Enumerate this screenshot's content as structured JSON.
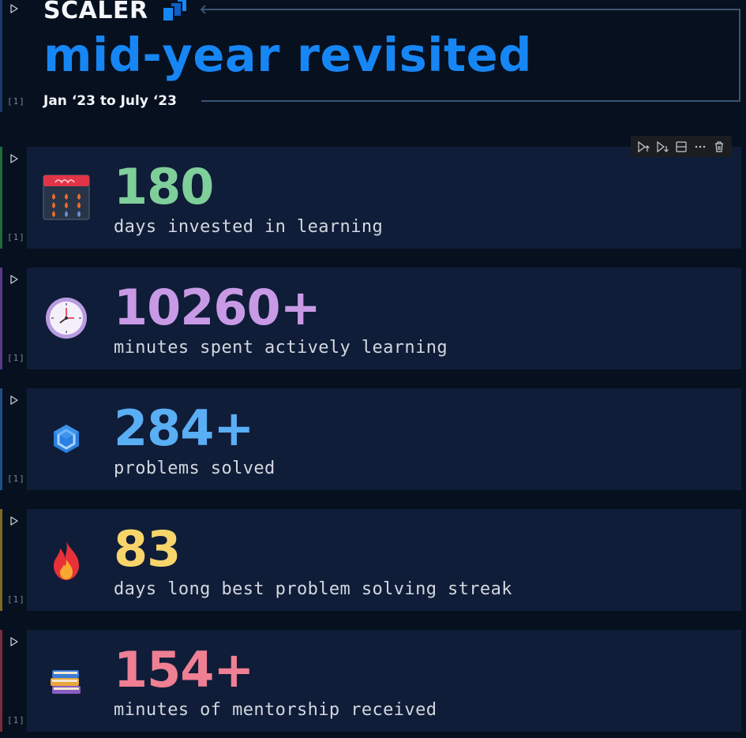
{
  "header": {
    "brand": "SCALER",
    "title": "mid-year revisited",
    "subtitle": "Jan ‘23 to July ‘23",
    "exec_count": "[1]"
  },
  "cells": [
    {
      "value": "180",
      "label": "days invested in learning",
      "color": "#7ecf9a",
      "icon": "calendar-icon",
      "exec_count": "[1]",
      "bar_color": "#1f6b3a"
    },
    {
      "value": "10260+",
      "label": "minutes spent actively learning",
      "color": "#c89ae6",
      "icon": "clock-icon",
      "exec_count": "[1]",
      "bar_color": "#5b3a8a"
    },
    {
      "value": "284+",
      "label": "problems solved",
      "color": "#5aaef4",
      "icon": "hexagon-icon",
      "exec_count": "[1]",
      "bar_color": "#1f4f86"
    },
    {
      "value": "83",
      "label": "days long best problem solving streak",
      "color": "#f7d56a",
      "icon": "fire-icon",
      "exec_count": "[1]",
      "bar_color": "#7a6a22"
    },
    {
      "value": "154+",
      "label": "minutes of mentorship received",
      "color": "#ef7f93",
      "icon": "books-icon",
      "exec_count": "[1]",
      "bar_color": "#7a2c3c"
    }
  ],
  "toolbar": {
    "icons": [
      "execute-above-icon",
      "execute-below-icon",
      "split-cell-icon",
      "more-actions-icon",
      "delete-cell-icon"
    ]
  }
}
